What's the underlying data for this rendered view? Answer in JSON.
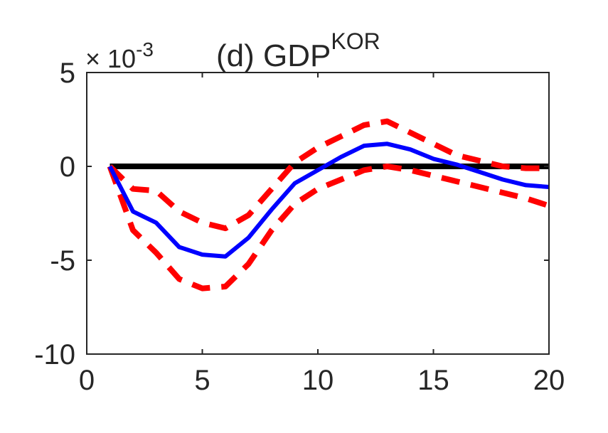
{
  "chart_data": {
    "type": "line",
    "title_main": "(d) GDP",
    "title_sup": "KOR",
    "exponent_prefix": "× 10",
    "exponent_power": "-3",
    "xlabel": "",
    "ylabel": "",
    "xlim": [
      0,
      20
    ],
    "ylim": [
      -10,
      5
    ],
    "x_ticks": [
      0,
      5,
      10,
      15,
      20
    ],
    "x_tick_labels": [
      "0",
      "5",
      "10",
      "15",
      "20"
    ],
    "y_ticks": [
      5,
      0,
      -5,
      -10
    ],
    "y_tick_labels": [
      "5",
      "0",
      "-5",
      "-10"
    ],
    "grid": false,
    "legend": "none",
    "x": [
      1,
      2,
      3,
      4,
      5,
      6,
      7,
      8,
      9,
      10,
      11,
      12,
      13,
      14,
      15,
      16,
      17,
      18,
      19,
      20
    ],
    "series": [
      {
        "role": "zero",
        "color": "#000000",
        "style": "solid",
        "points": [
          [
            1,
            0
          ],
          [
            20,
            0
          ]
        ]
      },
      {
        "role": "upper-band",
        "color": "#ff0000",
        "style": "dashed",
        "values": [
          0,
          -1.2,
          -1.3,
          -2.4,
          -3.0,
          -3.3,
          -2.6,
          -1.2,
          0.2,
          1.0,
          1.6,
          2.2,
          2.4,
          1.8,
          1.2,
          0.6,
          0.3,
          0.0,
          -0.1,
          -0.1
        ]
      },
      {
        "role": "lower-band",
        "color": "#ff0000",
        "style": "dashed",
        "values": [
          0,
          -3.4,
          -4.6,
          -6.0,
          -6.5,
          -6.4,
          -5.2,
          -3.4,
          -2.0,
          -1.2,
          -0.7,
          -0.2,
          0.0,
          -0.2,
          -0.5,
          -0.8,
          -1.1,
          -1.4,
          -1.7,
          -2.1
        ]
      },
      {
        "role": "median",
        "color": "#0000ff",
        "style": "solid",
        "values": [
          0,
          -2.4,
          -3.0,
          -4.3,
          -4.7,
          -4.8,
          -3.8,
          -2.3,
          -0.9,
          -0.2,
          0.5,
          1.1,
          1.2,
          0.9,
          0.4,
          0.1,
          -0.3,
          -0.7,
          -1.0,
          -1.1
        ]
      }
    ]
  }
}
